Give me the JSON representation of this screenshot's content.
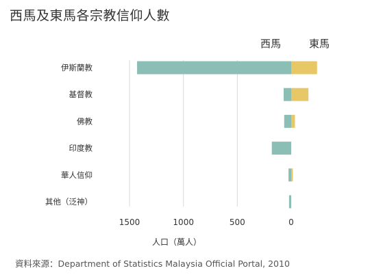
{
  "title": "西馬及東馬各宗教信仰人數",
  "source": "資料來源：Department of Statistics Malaysia Official Portal, 2010",
  "colors": {
    "west": "#8bbfb5",
    "east": "#e8c866",
    "grid": "#d9d9d9"
  },
  "chart_data": {
    "type": "bar",
    "orientation": "horizontal-butterfly",
    "categories": [
      "伊斯蘭教",
      "基督教",
      "佛教",
      "印度教",
      "華人信仰",
      "其他（泛神）"
    ],
    "series": [
      {
        "name": "西馬",
        "values": [
          1430,
          70,
          65,
          180,
          25,
          20
        ]
      },
      {
        "name": "東馬",
        "values": [
          240,
          160,
          35,
          0,
          15,
          0
        ]
      }
    ],
    "xlabel": "人口（萬人）",
    "xticks": [
      1500,
      1000,
      500,
      0
    ],
    "xlim": [
      0,
      1500
    ],
    "grid": true,
    "legend": "top-right"
  }
}
